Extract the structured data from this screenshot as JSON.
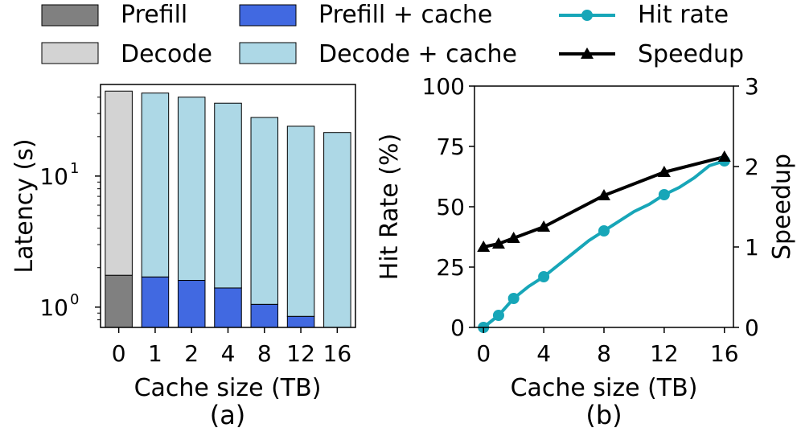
{
  "legend": {
    "items": [
      {
        "label": "Prefill",
        "kind": "swatch",
        "color": "#808080"
      },
      {
        "label": "Prefill + cache",
        "kind": "swatch",
        "color": "#4169e1"
      },
      {
        "label": "Hit rate",
        "kind": "line-circle",
        "color": "#17a6b8"
      },
      {
        "label": "Decode",
        "kind": "swatch",
        "color": "#d3d3d3"
      },
      {
        "label": "Decode + cache",
        "kind": "swatch",
        "color": "#add8e6"
      },
      {
        "label": "Speedup",
        "kind": "line-triangle",
        "color": "#000000"
      }
    ]
  },
  "chart_data": [
    {
      "id": "a",
      "type": "bar",
      "stacked": true,
      "yscale": "log",
      "caption": "(a)",
      "xlabel": "Cache size (TB)",
      "ylabel": "Latency (s)",
      "ylim": [
        0.7,
        50
      ],
      "yticks": [
        {
          "value": 1,
          "base": "10",
          "exp": "0"
        },
        {
          "value": 10,
          "base": "10",
          "exp": "1"
        }
      ],
      "categories": [
        "0",
        "1",
        "2",
        "4",
        "8",
        "12",
        "16"
      ],
      "series": [
        {
          "name": "Prefill",
          "color": "#808080",
          "values": [
            1.75,
            null,
            null,
            null,
            null,
            null,
            null
          ]
        },
        {
          "name": "Decode",
          "color": "#d3d3d3",
          "values": [
            44.5,
            null,
            null,
            null,
            null,
            null,
            null
          ]
        },
        {
          "name": "Prefill + cache",
          "color": "#4169e1",
          "values": [
            null,
            1.7,
            1.6,
            1.4,
            1.05,
            0.85,
            0.7
          ]
        },
        {
          "name": "Decode + cache",
          "color": "#add8e6",
          "values": [
            null,
            43.0,
            40.0,
            36.0,
            28.0,
            24.0,
            21.5
          ]
        }
      ]
    },
    {
      "id": "b",
      "type": "line",
      "caption": "(b)",
      "xlabel": "Cache size (TB)",
      "ylabel": "Hit Rate (%)",
      "y2label": "Speedup",
      "xlim": [
        -0.6,
        16.6
      ],
      "ylim": [
        0,
        100
      ],
      "y2lim": [
        0,
        3
      ],
      "xticks": [
        0,
        4,
        8,
        12,
        16
      ],
      "yticks": [
        0,
        25,
        50,
        75,
        100
      ],
      "y2ticks": [
        0,
        1,
        2,
        3
      ],
      "series": [
        {
          "name": "Hit rate",
          "axis": "left",
          "color": "#17a6b8",
          "marker": "circle",
          "x": [
            0,
            1,
            2,
            3,
            4,
            5,
            6,
            7,
            8,
            9,
            10,
            11,
            12,
            13,
            14,
            15,
            16
          ],
          "y": [
            0,
            5,
            12,
            17,
            21,
            26,
            31,
            36,
            40,
            44,
            48,
            51,
            55,
            58,
            62,
            67,
            69
          ],
          "marker_x": [
            0,
            1,
            2,
            4,
            8,
            12,
            16
          ]
        },
        {
          "name": "Speedup",
          "axis": "right",
          "color": "#000000",
          "marker": "triangle",
          "x": [
            0,
            1,
            2,
            4,
            8,
            12,
            16
          ],
          "y": [
            1.0,
            1.04,
            1.11,
            1.25,
            1.64,
            1.93,
            2.12
          ],
          "marker_x": [
            0,
            1,
            2,
            4,
            8,
            12,
            16
          ]
        }
      ]
    }
  ]
}
